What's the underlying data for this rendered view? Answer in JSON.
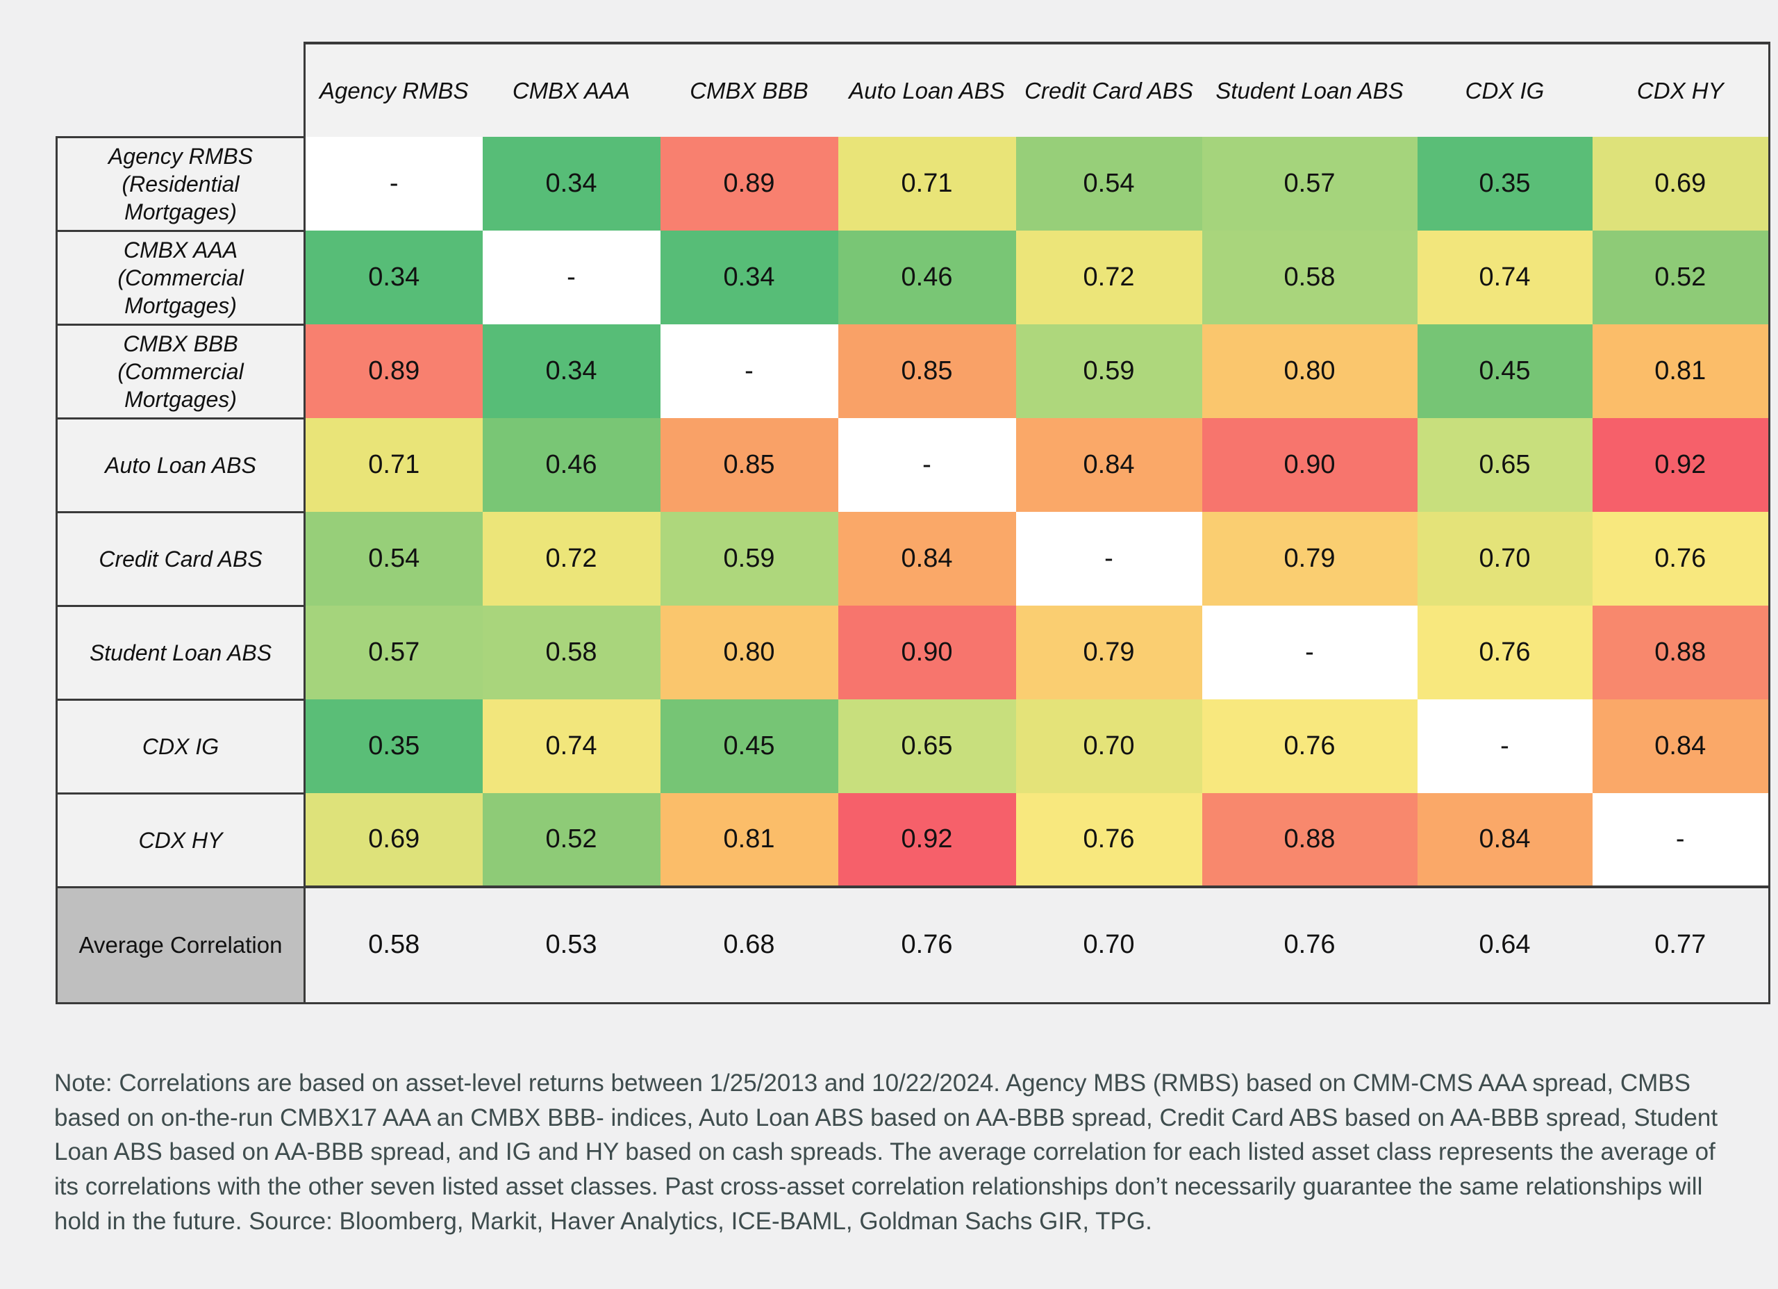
{
  "chart_data": {
    "type": "heatmap",
    "title": "",
    "categories": [
      "Agency RMBS",
      "CMBX AAA",
      "CMBX BBB",
      "Auto Loan ABS",
      "Credit Card ABS",
      "Student Loan ABS",
      "CDX IG",
      "CDX HY"
    ],
    "row_labels": [
      "Agency RMBS\n(Residential\nMortgages)",
      "CMBX AAA\n(Commercial\nMortgages)",
      "CMBX BBB\n(Commercial\nMortgages)",
      "Auto Loan ABS",
      "Credit Card ABS",
      "Student Loan ABS",
      "CDX IG",
      "CDX HY"
    ],
    "matrix": [
      [
        null,
        0.34,
        0.89,
        0.71,
        0.54,
        0.57,
        0.35,
        0.69
      ],
      [
        0.34,
        null,
        0.34,
        0.46,
        0.72,
        0.58,
        0.74,
        0.52
      ],
      [
        0.89,
        0.34,
        null,
        0.85,
        0.59,
        0.8,
        0.45,
        0.81
      ],
      [
        0.71,
        0.46,
        0.85,
        null,
        0.84,
        0.9,
        0.65,
        0.92
      ],
      [
        0.54,
        0.72,
        0.59,
        0.84,
        null,
        0.79,
        0.7,
        0.76
      ],
      [
        0.57,
        0.58,
        0.8,
        0.9,
        0.79,
        null,
        0.76,
        0.88
      ],
      [
        0.35,
        0.74,
        0.45,
        0.65,
        0.7,
        0.76,
        null,
        0.84
      ],
      [
        0.69,
        0.52,
        0.81,
        0.92,
        0.76,
        0.88,
        0.84,
        null
      ]
    ],
    "average_row": {
      "label": "Average Correlation",
      "values": [
        0.58,
        0.53,
        0.68,
        0.76,
        0.7,
        0.76,
        0.64,
        0.77
      ]
    },
    "null_display": "-",
    "value_decimals": 2,
    "legend": "none",
    "grid": "off",
    "color_scale": {
      "description": "red-yellow-green reversed, low=green high=red",
      "stops": [
        {
          "v": 0.34,
          "c": "#57bd77"
        },
        {
          "v": 0.46,
          "c": "#79c675"
        },
        {
          "v": 0.52,
          "c": "#8ecb77"
        },
        {
          "v": 0.57,
          "c": "#a5d47c"
        },
        {
          "v": 0.65,
          "c": "#c8df7d"
        },
        {
          "v": 0.71,
          "c": "#e9e478"
        },
        {
          "v": 0.76,
          "c": "#f8e87e"
        },
        {
          "v": 0.81,
          "c": "#fbbd69"
        },
        {
          "v": 0.85,
          "c": "#f9a167"
        },
        {
          "v": 0.89,
          "c": "#f8806f"
        },
        {
          "v": 0.92,
          "c": "#f6606a"
        }
      ]
    }
  },
  "colors": {
    "page-bg": "#f0f0f1",
    "panel-bg": "#f2f2f2",
    "border": "#3a3a3a",
    "avg-head-bg": "#bfbfbf",
    "note-color": "#3e4c4d",
    "cell-null": "#ffffff"
  },
  "note": {
    "text": "Note: Correlations are based on asset-level returns between 1/25/2013 and 10/22/2024. Agency MBS (RMBS) based on CMM-CMS AAA spread, CMBS based on on-the-run CMBX17 AAA an CMBX BBB- indices, Auto Loan ABS based on AA-BBB spread, Credit Card ABS based on AA-BBB spread, Student Loan ABS based on AA-BBB spread, and IG and HY based on cash spreads. The average correlation for each listed asset class represents the average of its correlations with the other seven listed asset classes. Past cross-asset correlation relationships don’t necessarily guarantee the same relationships will hold in the future. Source: Bloomberg, Markit, Haver Analytics, ICE-BAML, Goldman Sachs GIR, TPG."
  }
}
